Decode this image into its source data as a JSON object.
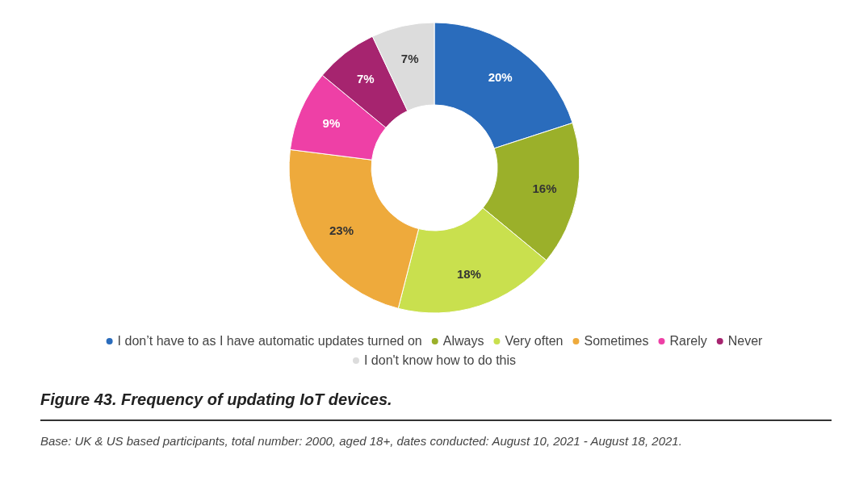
{
  "chart_data": {
    "type": "donut",
    "title": "Figure 43. Frequency of updating IoT devices.",
    "categories": [
      "I don’t have to as I have automatic updates turned on",
      "Always",
      "Very often",
      "Sometimes",
      "Rarely",
      "Never",
      "I don't know how to do this"
    ],
    "values": [
      20,
      16,
      18,
      23,
      9,
      7,
      7
    ],
    "colors": [
      "#2a6cbc",
      "#9bb02a",
      "#c9e04e",
      "#eeaa3c",
      "#ee40a6",
      "#a6246f",
      "#dcdcdc"
    ],
    "value_labels": [
      "20%",
      "16%",
      "18%",
      "23%",
      "9%",
      "7%",
      "7%"
    ],
    "legend": "bottom",
    "annotations": [
      "Base: UK & US based participants, total number: 2000, aged 18+, dates conducted: August 10, 2021 - August 18, 2021."
    ]
  }
}
